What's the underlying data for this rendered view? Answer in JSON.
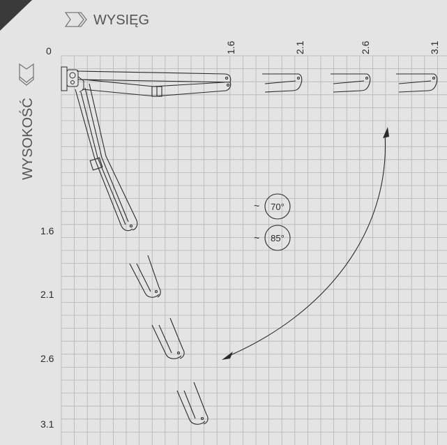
{
  "axes": {
    "x_title": "WYSIĘG",
    "y_title": "WYSOKOŚĆ",
    "origin_label": "0",
    "x_ticks": [
      "1.6",
      "2.1",
      "2.6",
      "3.1"
    ],
    "y_ticks": [
      "1.6",
      "2.1",
      "2.6",
      "3.1"
    ]
  },
  "angles": [
    {
      "prefix": "~",
      "value": "70°"
    },
    {
      "prefix": "~",
      "value": "85°"
    }
  ],
  "colors": {
    "background": "#e4e4e4",
    "grid": "#b4b4b4",
    "line": "#2a2a2a",
    "corner": "#3a3a3a"
  }
}
